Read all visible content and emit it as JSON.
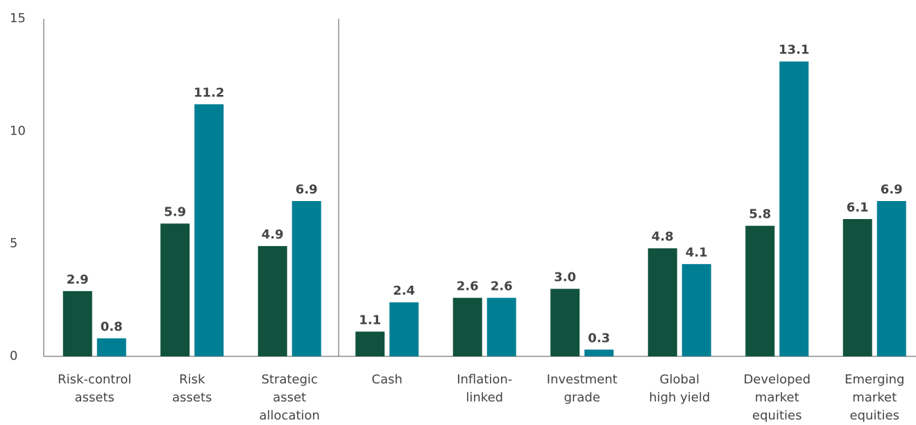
{
  "chart_data": {
    "type": "bar",
    "categories": [
      [
        "Risk-control",
        "assets"
      ],
      [
        "Risk",
        "assets"
      ],
      [
        "Strategic",
        "asset",
        "allocation"
      ],
      [
        "Cash"
      ],
      [
        "Inflation-",
        "linked"
      ],
      [
        "Investment",
        "grade"
      ],
      [
        "Global",
        "high yield"
      ],
      [
        "Developed",
        "market",
        "equities"
      ],
      [
        "Emerging",
        "market",
        "equities"
      ]
    ],
    "series": [
      {
        "color": "#10523d",
        "values": [
          2.9,
          5.9,
          4.9,
          1.1,
          2.6,
          3,
          4.8,
          5.8,
          6.1
        ],
        "value_labels": [
          "2.9",
          "5.9",
          "4.9",
          "1.1",
          "2.6",
          "3.0",
          "4.8",
          "5.8",
          "6.1"
        ]
      },
      {
        "color": "#007f94",
        "values": [
          0.8,
          11.2,
          6.9,
          2.4,
          2.6,
          0.3,
          4.1,
          13.1,
          6.9
        ],
        "value_labels": [
          "0.8",
          "11.2",
          "6.9",
          "2.4",
          "2.6",
          "0.3",
          "4.1",
          "13.1",
          "6.9"
        ]
      }
    ],
    "ylim": [
      0,
      15
    ],
    "yticks": [
      0,
      5,
      10,
      15
    ],
    "grid": false
  }
}
